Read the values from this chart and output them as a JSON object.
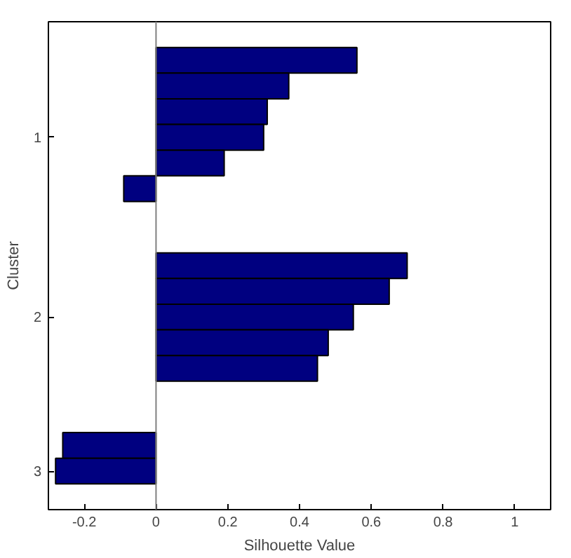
{
  "chart_data": {
    "type": "bar",
    "orientation": "horizontal",
    "xlabel": "Silhouette Value",
    "ylabel": "Cluster",
    "categories": [
      null,
      null,
      null,
      null,
      "1",
      null,
      null,
      null,
      null,
      null,
      null,
      "2",
      null,
      null,
      null,
      null,
      null,
      "3",
      null
    ],
    "values": [
      null,
      0.56,
      0.37,
      0.31,
      0.3,
      0.19,
      -0.09,
      null,
      null,
      0.7,
      0.65,
      0.55,
      0.48,
      0.45,
      null,
      null,
      -0.26,
      -0.28,
      null
    ],
    "color": "#000080",
    "xlim": [
      -0.3,
      1.1
    ],
    "xticks": [
      -0.2,
      0,
      0.2,
      0.4,
      0.6,
      0.8,
      1
    ],
    "ref_lines": [
      {
        "axis": "x",
        "value": 0,
        "color": "#808080"
      }
    ],
    "grid": false
  }
}
